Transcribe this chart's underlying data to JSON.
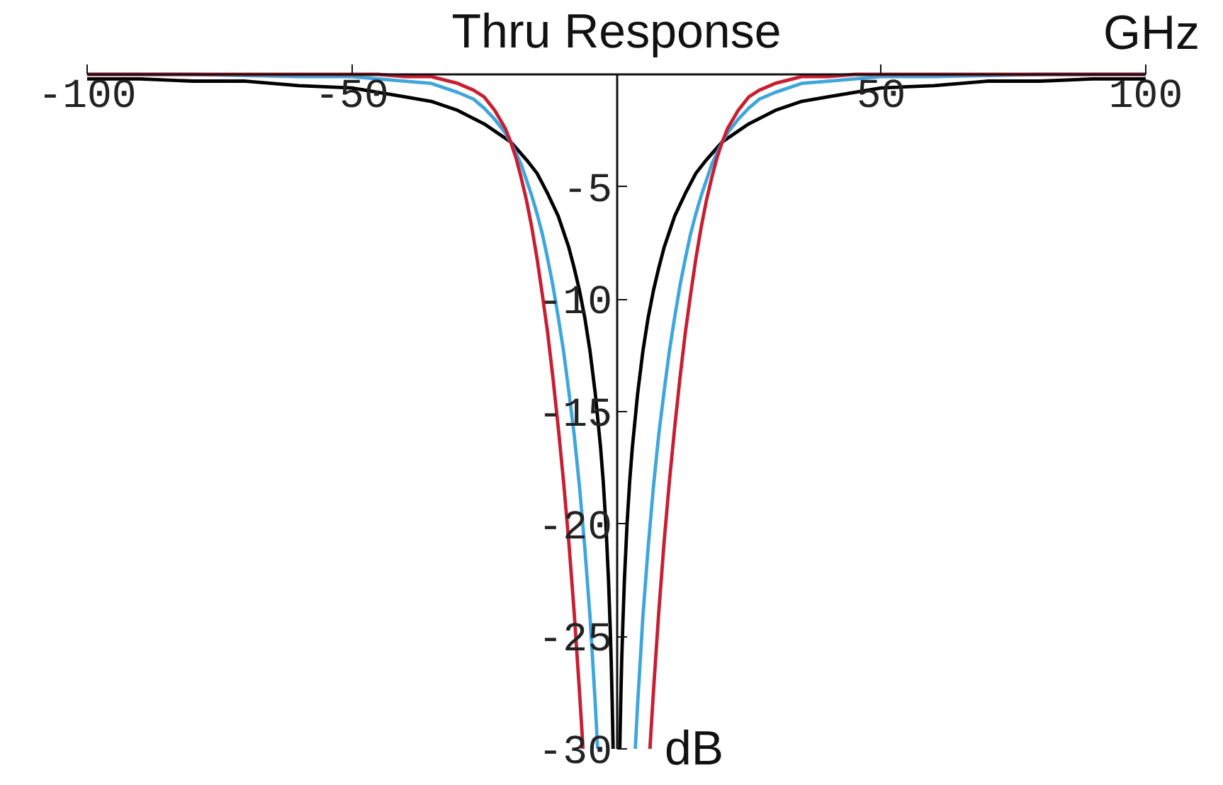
{
  "chart_data": {
    "type": "line",
    "title": "Thru Response",
    "xlabel": "GHz",
    "ylabel": "dB",
    "xlim": [
      -100,
      100
    ],
    "ylim": [
      -30,
      0
    ],
    "xticks": [
      -100,
      -50,
      50,
      100
    ],
    "yticks": [
      -5,
      -10,
      -15,
      -20,
      -25,
      -30
    ],
    "grid": false,
    "series": [
      {
        "color": "#000000",
        "x": [
          -100,
          -90,
          -80,
          -70,
          -60,
          -50,
          -45,
          -40,
          -35,
          -30,
          -25,
          -20,
          -17,
          -15,
          -13,
          -11,
          -10,
          -9,
          -8,
          -7,
          -6,
          -5,
          -4,
          -3,
          -2.5,
          -2,
          -1.5,
          -1.2,
          -1,
          -0.8,
          -0.63,
          0,
          0.63,
          0.8,
          1,
          1.2,
          1.5,
          2,
          2.5,
          3,
          4,
          5,
          6,
          7,
          8,
          9,
          10,
          11,
          13,
          15,
          17,
          20,
          25,
          30,
          35,
          40,
          45,
          50,
          60,
          70,
          80,
          90,
          100
        ],
        "values": [
          -0.2,
          -0.2,
          -0.3,
          -0.3,
          -0.5,
          -0.6,
          -0.8,
          -1.0,
          -1.2,
          -1.6,
          -2.2,
          -3.0,
          -3.8,
          -4.4,
          -5.3,
          -6.3,
          -7.0,
          -7.7,
          -8.6,
          -9.6,
          -10.8,
          -12.3,
          -14.2,
          -16.6,
          -18.1,
          -20.0,
          -22.5,
          -24.5,
          -26.0,
          -28.0,
          -30,
          null,
          -30,
          -28.0,
          -26.0,
          -24.5,
          -22.5,
          -20.0,
          -18.1,
          -16.6,
          -14.2,
          -12.3,
          -10.8,
          -9.6,
          -8.6,
          -7.7,
          -7.0,
          -6.3,
          -5.3,
          -4.4,
          -3.8,
          -3.0,
          -2.2,
          -1.6,
          -1.2,
          -1.0,
          -0.8,
          -0.6,
          -0.5,
          -0.3,
          -0.3,
          -0.2,
          -0.2
        ]
      },
      {
        "color": "#3fa6dc",
        "x": [
          -100,
          -80,
          -60,
          -50,
          -45,
          -40,
          -35,
          -30,
          -27,
          -25,
          -23,
          -21,
          -20,
          -19,
          -18,
          -17,
          -16,
          -15,
          -14,
          -13,
          -12,
          -11,
          -10,
          -9,
          -8,
          -7,
          -6,
          -5,
          -4,
          -3.56,
          0,
          3.56,
          4,
          5,
          6,
          7,
          8,
          9,
          10,
          11,
          12,
          13,
          14,
          15,
          16,
          17,
          18,
          19,
          20,
          21,
          23,
          25,
          27,
          30,
          35,
          40,
          45,
          50,
          60,
          80,
          100
        ],
        "values": [
          0,
          0,
          -0.1,
          -0.1,
          -0.2,
          -0.3,
          -0.4,
          -0.8,
          -1.1,
          -1.5,
          -2.0,
          -2.6,
          -3.0,
          -3.5,
          -4.0,
          -4.7,
          -5.4,
          -6.2,
          -7.1,
          -8.2,
          -9.4,
          -10.8,
          -12.3,
          -14.1,
          -16.0,
          -18.3,
          -21.0,
          -24.1,
          -28.0,
          -30,
          null,
          -30,
          -28.0,
          -24.1,
          -21.0,
          -18.3,
          -16.0,
          -14.1,
          -12.3,
          -10.8,
          -9.4,
          -8.2,
          -7.1,
          -6.2,
          -5.4,
          -4.7,
          -4.0,
          -3.5,
          -3.0,
          -2.6,
          -2.0,
          -1.5,
          -1.1,
          -0.8,
          -0.4,
          -0.3,
          -0.2,
          -0.1,
          -0.1,
          0,
          0
        ]
      },
      {
        "color": "#c81e32",
        "x": [
          -100,
          -80,
          -60,
          -50,
          -45,
          -40,
          -35,
          -30,
          -27,
          -25,
          -23,
          -21,
          -20,
          -19,
          -18,
          -17,
          -16,
          -15,
          -14,
          -13,
          -12,
          -11,
          -10,
          -9,
          -8,
          -7,
          -6.5,
          -6.33,
          0,
          6.33,
          6.5,
          7,
          8,
          9,
          10,
          11,
          12,
          13,
          14,
          15,
          16,
          17,
          18,
          19,
          20,
          21,
          23,
          25,
          27,
          30,
          35,
          40,
          45,
          50,
          60,
          80,
          100
        ],
        "values": [
          0,
          0,
          0,
          0,
          0,
          -0.1,
          -0.1,
          -0.4,
          -0.7,
          -1.0,
          -1.6,
          -2.4,
          -3.0,
          -3.7,
          -4.6,
          -5.6,
          -6.8,
          -8.2,
          -9.8,
          -11.5,
          -13.5,
          -15.7,
          -18.1,
          -20.8,
          -23.9,
          -27.4,
          -29.3,
          -30,
          null,
          -30,
          -29.3,
          -27.4,
          -23.9,
          -20.8,
          -18.1,
          -15.7,
          -13.5,
          -11.5,
          -9.8,
          -8.2,
          -6.8,
          -5.6,
          -4.6,
          -3.7,
          -3.0,
          -2.4,
          -1.6,
          -1.0,
          -0.7,
          -0.4,
          -0.1,
          -0.1,
          0,
          0,
          0,
          0,
          0
        ]
      }
    ]
  }
}
